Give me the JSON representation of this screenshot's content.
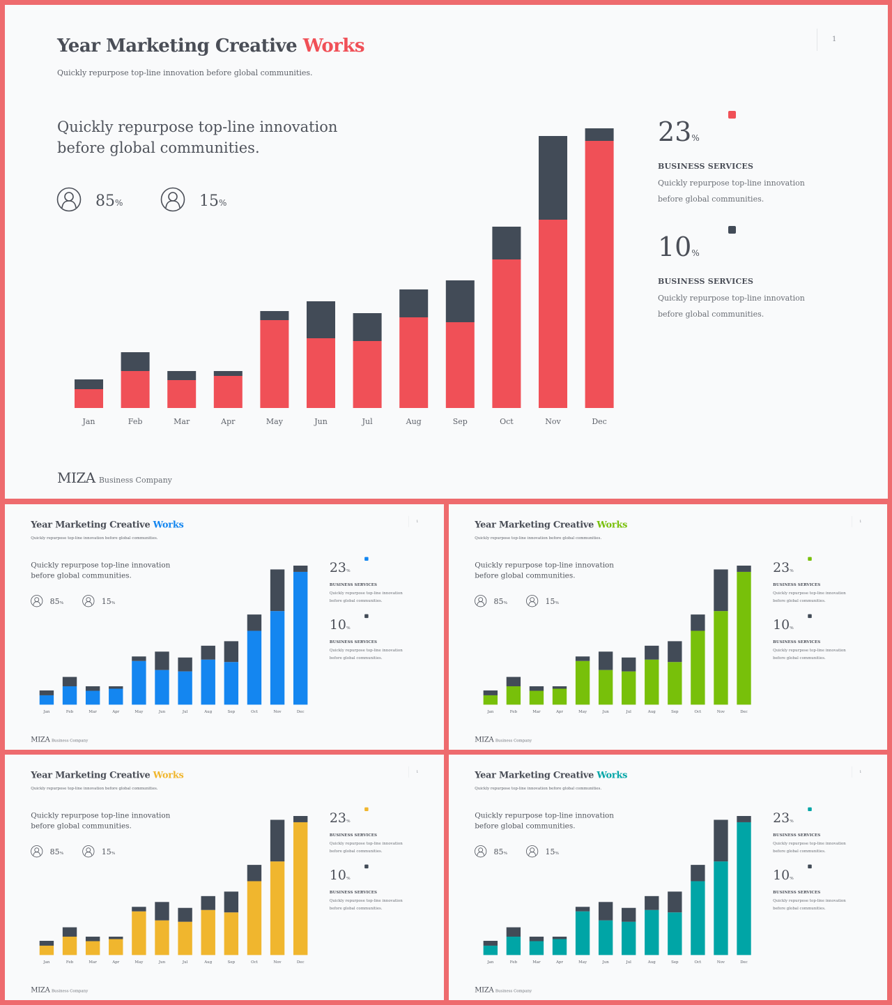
{
  "slide": {
    "title_main": "Year Marketing Creative",
    "title_accent": "Works",
    "subtitle": "Quickly repurpose top-line innovation before global communities.",
    "page_number": "1",
    "lead": "Quickly repurpose top-line innovation before global communities.",
    "personas": [
      {
        "icon": "user-icon",
        "value": "85",
        "unit": "%"
      },
      {
        "icon": "user-icon",
        "value": "15",
        "unit": "%"
      }
    ],
    "stats": [
      {
        "value": "23",
        "unit": "%",
        "label": "BUSINESS SERVICES",
        "desc": "Quickly repurpose top-line innovation before global communities.",
        "swatch": "accent"
      },
      {
        "value": "10",
        "unit": "%",
        "label": "BUSINESS SERVICES",
        "desc": "Quickly repurpose top-line innovation before global communities.",
        "swatch": "dark"
      }
    ],
    "footer_brand": "MIZA",
    "footer_company": "Business Company"
  },
  "themes": [
    {
      "accent": "#f05057"
    },
    {
      "accent": "#1486f0"
    },
    {
      "accent": "#78c00a"
    },
    {
      "accent": "#f0b62e"
    },
    {
      "accent": "#00a5a6"
    }
  ],
  "colors": {
    "dark": "#424b57",
    "frame": "#ee6b6e",
    "background": "#f9fafb"
  },
  "chart_data": {
    "type": "bar",
    "stacked": true,
    "categories": [
      "Jan",
      "Feb",
      "Mar",
      "Apr",
      "May",
      "Jun",
      "Jul",
      "Aug",
      "Sep",
      "Oct",
      "Nov",
      "Dec"
    ],
    "series": [
      {
        "values": [
          27,
          53,
          40,
          46,
          126,
          100,
          96,
          130,
          123,
          213,
          270,
          383
        ]
      },
      {
        "values": [
          14,
          27,
          13,
          7,
          13,
          53,
          40,
          40,
          60,
          47,
          120,
          18
        ]
      }
    ],
    "ylim": [
      0,
      401
    ]
  }
}
